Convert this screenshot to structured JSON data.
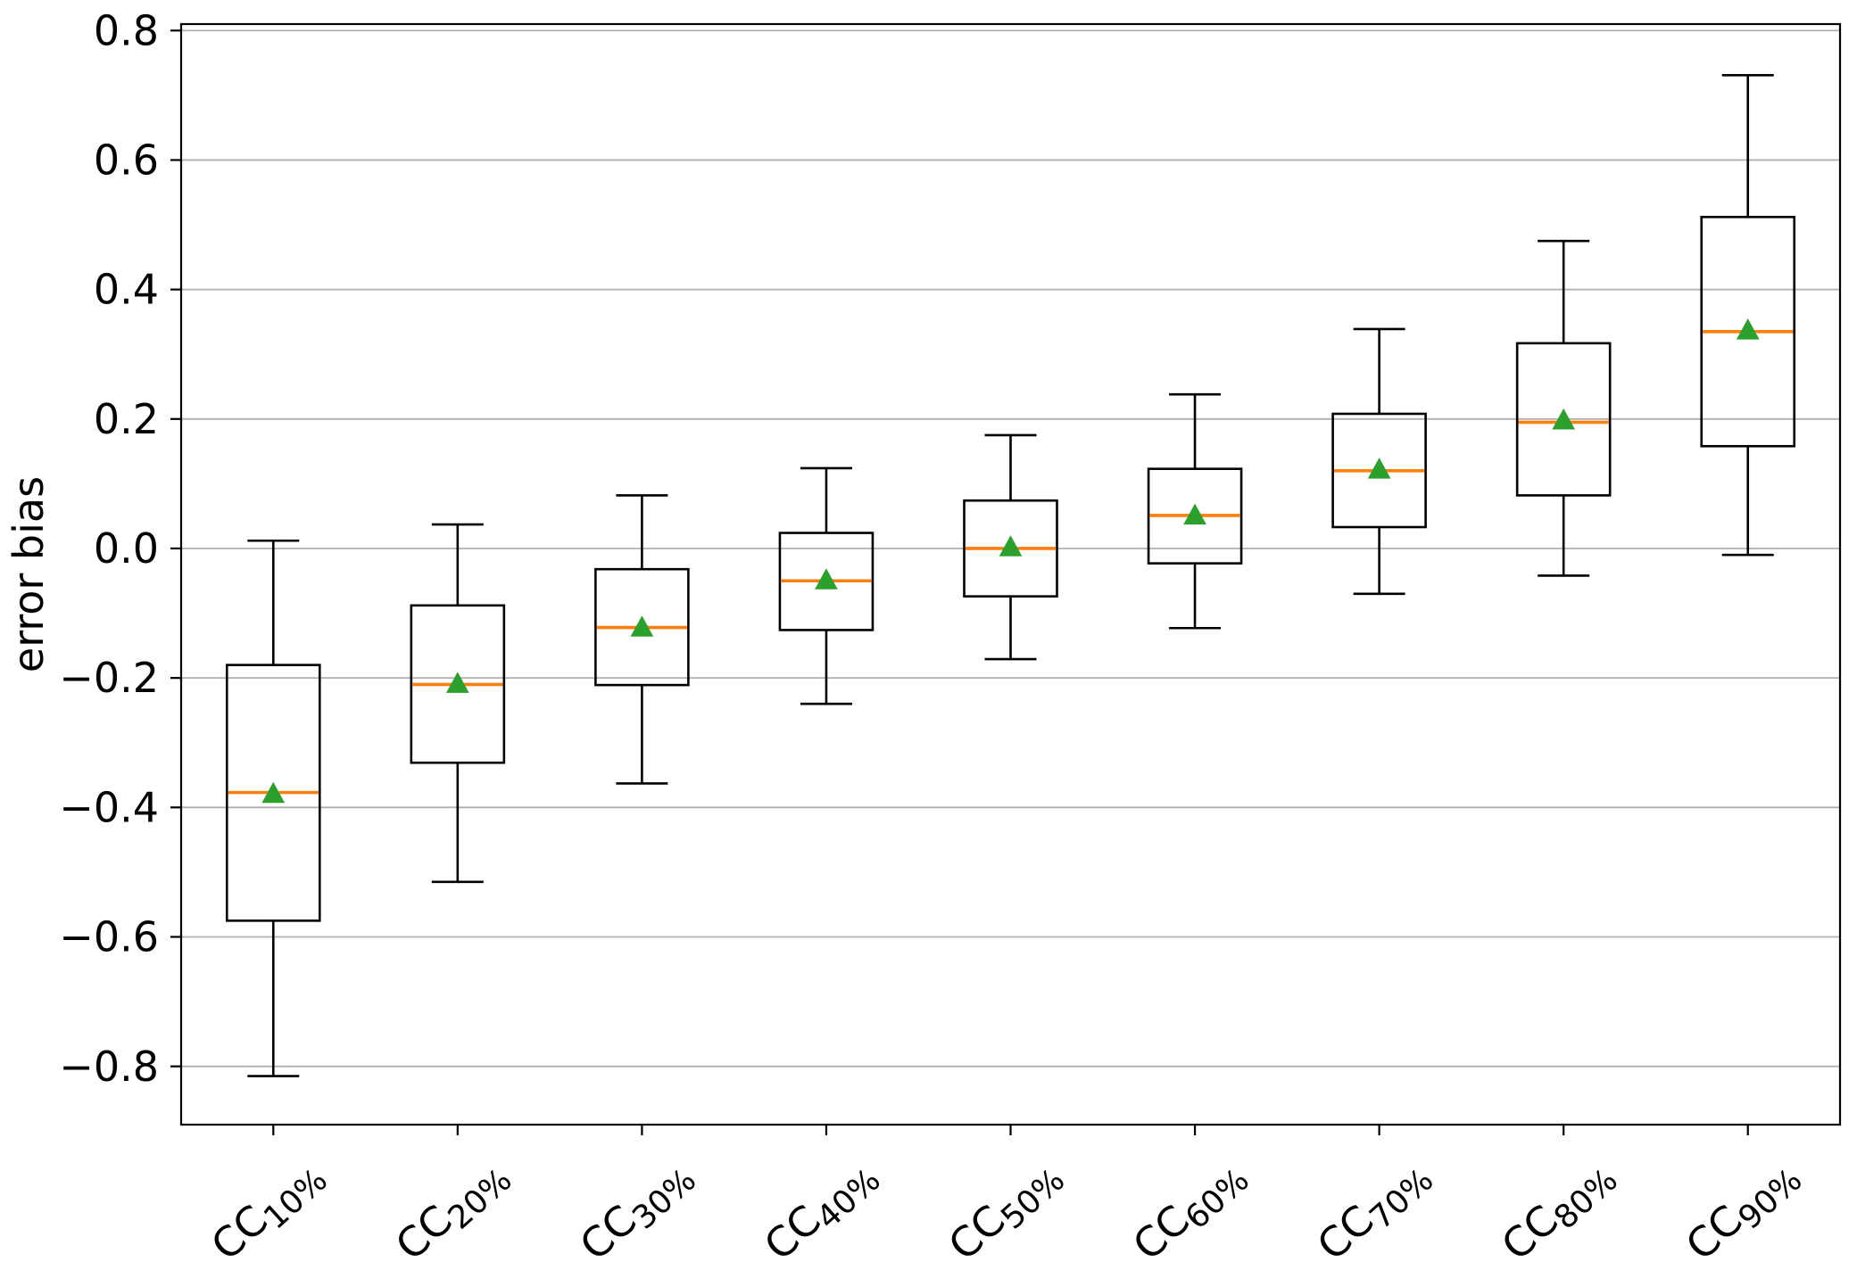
{
  "chart_data": {
    "type": "box",
    "title": "",
    "xlabel": "",
    "ylabel": "error bias",
    "ylim": [
      -0.89,
      0.81
    ],
    "grid": true,
    "legend": "none",
    "orientation": "vertical",
    "y_ticks": [
      {
        "value": 0.8,
        "label": "0.8"
      },
      {
        "value": 0.6,
        "label": "0.6"
      },
      {
        "value": 0.4,
        "label": "0.4"
      },
      {
        "value": 0.2,
        "label": "0.2"
      },
      {
        "value": 0.0,
        "label": "0.0"
      },
      {
        "value": -0.2,
        "label": "−0.2"
      },
      {
        "value": -0.4,
        "label": "−0.4"
      },
      {
        "value": -0.6,
        "label": "−0.6"
      },
      {
        "value": -0.8,
        "label": "−0.8"
      }
    ],
    "boxes": [
      {
        "label_prefix": "CC",
        "label_sub": "10%",
        "whislo": -0.815,
        "q1": -0.575,
        "med": -0.377,
        "q3": -0.18,
        "whishi": 0.012,
        "mean": -0.38
      },
      {
        "label_prefix": "CC",
        "label_sub": "20%",
        "whislo": -0.515,
        "q1": -0.331,
        "med": -0.21,
        "q3": -0.088,
        "whishi": 0.037,
        "mean": -0.21
      },
      {
        "label_prefix": "CC",
        "label_sub": "30%",
        "whislo": -0.363,
        "q1": -0.211,
        "med": -0.122,
        "q3": -0.032,
        "whishi": 0.082,
        "mean": -0.123
      },
      {
        "label_prefix": "CC",
        "label_sub": "40%",
        "whislo": -0.24,
        "q1": -0.126,
        "med": -0.05,
        "q3": 0.024,
        "whishi": 0.124,
        "mean": -0.05
      },
      {
        "label_prefix": "CC",
        "label_sub": "50%",
        "whislo": -0.171,
        "q1": -0.074,
        "med": 0.0,
        "q3": 0.074,
        "whishi": 0.175,
        "mean": 0.001
      },
      {
        "label_prefix": "CC",
        "label_sub": "60%",
        "whislo": -0.123,
        "q1": -0.023,
        "med": 0.051,
        "q3": 0.123,
        "whishi": 0.238,
        "mean": 0.05
      },
      {
        "label_prefix": "CC",
        "label_sub": "70%",
        "whislo": -0.07,
        "q1": 0.033,
        "med": 0.12,
        "q3": 0.208,
        "whishi": 0.339,
        "mean": 0.121
      },
      {
        "label_prefix": "CC",
        "label_sub": "80%",
        "whislo": -0.042,
        "q1": 0.082,
        "med": 0.195,
        "q3": 0.317,
        "whishi": 0.475,
        "mean": 0.197
      },
      {
        "label_prefix": "CC",
        "label_sub": "90%",
        "whislo": -0.01,
        "q1": 0.158,
        "med": 0.335,
        "q3": 0.512,
        "whishi": 0.731,
        "mean": 0.336
      }
    ],
    "colors": {
      "background": "#ffffff",
      "grid": "#b0b0b0",
      "box_line": "#000000",
      "median": "#ff7f0e",
      "mean_marker": "#2ca02c",
      "axis": "#000000"
    }
  }
}
